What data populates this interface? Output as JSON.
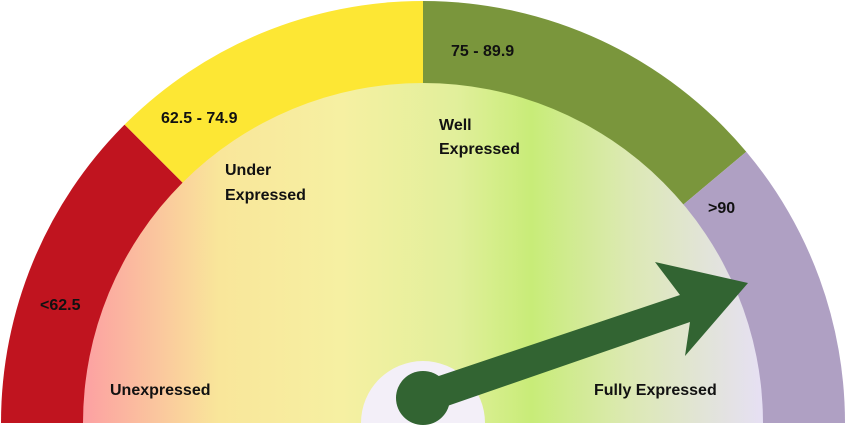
{
  "chart_data": {
    "type": "gauge",
    "title": "",
    "bands": [
      {
        "range_label": "<62.5",
        "zone_label": [
          "Unexpressed"
        ],
        "color": "#c0141f"
      },
      {
        "range_label": "62.5 - 74.9",
        "zone_label": [
          "Under",
          "Expressed"
        ],
        "color": "#fde734"
      },
      {
        "range_label": "75 - 89.9",
        "zone_label": [
          "Well",
          "Expressed"
        ],
        "color": "#7a963c"
      },
      {
        "range_label": ">90",
        "zone_label": [
          "Fully Expressed"
        ],
        "color": "#afa0c3"
      }
    ],
    "needle": {
      "color": "#326432",
      "points_to_band": ">90"
    }
  }
}
